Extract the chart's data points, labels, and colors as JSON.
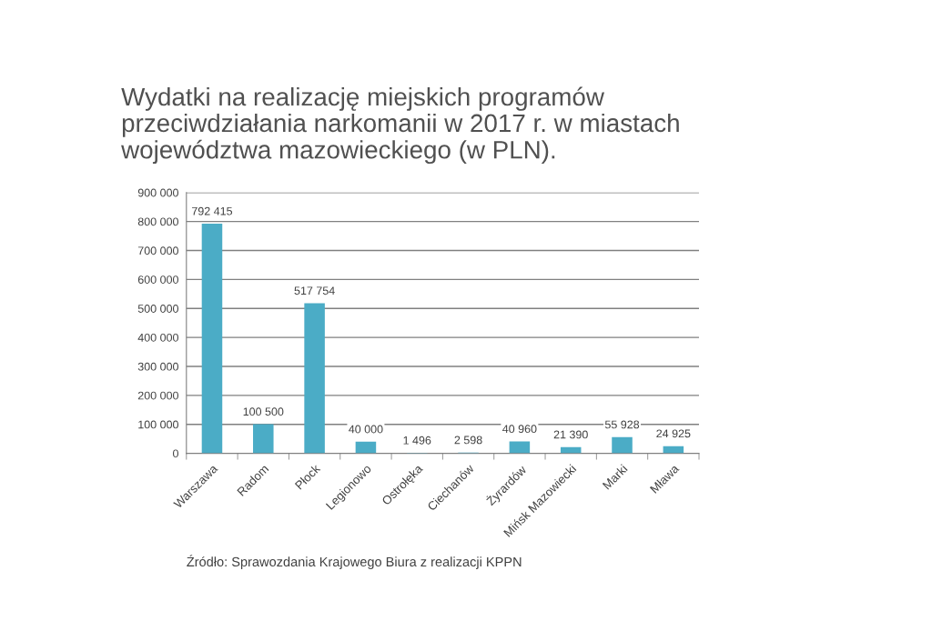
{
  "chart_data": {
    "type": "bar",
    "title": "Wydatki na realizację miejskich programów przeciwdziałania narkomanii w 2017 r. w miastach województwa mazowieckiego (w PLN).",
    "categories": [
      "Warszawa",
      "Radom",
      "Płock",
      "Legionowo",
      "Ostrołęka",
      "Ciechanów",
      "Żyrardów",
      "Mińsk Mazowiecki",
      "Marki",
      "Mława"
    ],
    "values": [
      792415,
      100500,
      517754,
      40000,
      1496,
      2598,
      40960,
      21390,
      55928,
      24925
    ],
    "value_labels": [
      "792 415",
      "100 500",
      "517 754",
      "40 000",
      "1 496",
      "2 598",
      "40 960",
      "21 390",
      "55 928",
      "24 925"
    ],
    "color": "#4bacc6",
    "ylim": [
      0,
      900000
    ],
    "yticks": [
      0,
      {
        "value": 100000,
        "label": "100 000"
      },
      {
        "value": 200000,
        "label": "200 000"
      },
      {
        "value": 300000,
        "label": "300 000"
      },
      {
        "value": 400000,
        "label": "400 000"
      },
      {
        "value": 500000,
        "label": "500 000"
      },
      {
        "value": 600000,
        "label": "600 000"
      },
      {
        "value": 700000,
        "label": "700 000"
      },
      {
        "value": 800000,
        "label": "800 000"
      },
      {
        "value": 900000,
        "label": "900 000"
      }
    ],
    "grid": "y",
    "annotations": [
      "Źródło: Sprawozdania Krajowego Biura z realizacji KPPN"
    ]
  }
}
